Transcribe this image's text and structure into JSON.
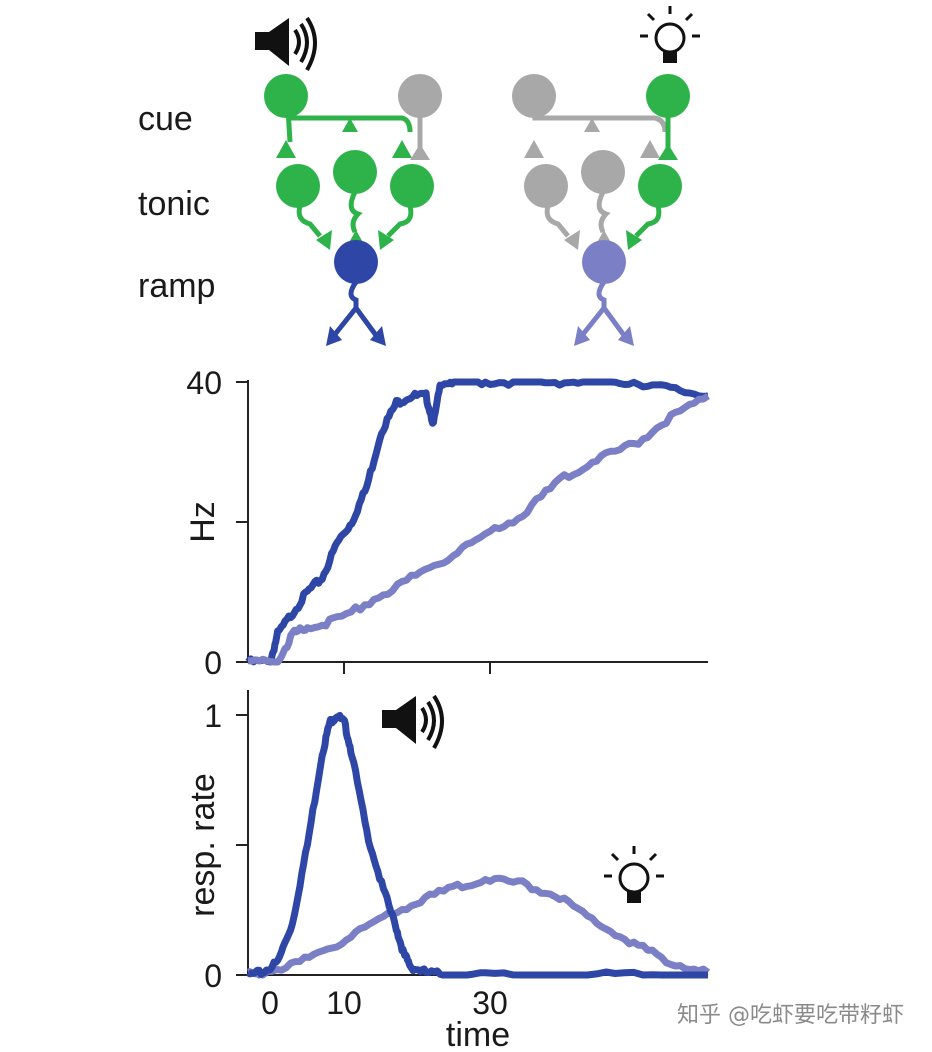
{
  "watermark": "知乎 @吃虾要吃带籽虾",
  "colors": {
    "cue_active": "#2db34a",
    "inactive": "#a8a8a8",
    "ramp_auditory": "#2e46a6",
    "ramp_visual": "#7b7fc6",
    "axis": "#222222"
  },
  "network": {
    "rows": [
      "cue",
      "tonic",
      "ramp"
    ],
    "left_stimulus_icon": "speaker-icon",
    "right_stimulus_icon": "lightbulb-icon"
  },
  "chart_data": [
    {
      "type": "line",
      "ylabel": "Hz",
      "xlim": [
        -2,
        60
      ],
      "ylim": [
        0,
        40
      ],
      "yticks": [
        0,
        40
      ],
      "xticks": [
        10,
        30
      ],
      "series": [
        {
          "color": "#2e46a6",
          "x": [
            -2,
            1,
            2,
            4,
            6,
            8,
            10,
            12,
            14,
            16,
            18,
            20,
            22,
            23,
            24,
            26,
            30,
            35,
            40,
            45,
            50,
            55,
            60
          ],
          "y": [
            0,
            0,
            4,
            7,
            10,
            12,
            17,
            20,
            25,
            33,
            37,
            38,
            38,
            34,
            40,
            40,
            40,
            40,
            40,
            40,
            40,
            39,
            38
          ]
        },
        {
          "color": "#7b7fc6",
          "x": [
            -2,
            2,
            4,
            6,
            10,
            15,
            20,
            25,
            30,
            35,
            40,
            45,
            50,
            55,
            60
          ],
          "y": [
            0,
            0,
            4,
            5,
            6,
            9,
            12,
            15,
            18,
            21,
            26,
            29,
            31,
            35,
            38
          ]
        }
      ]
    },
    {
      "type": "line",
      "ylabel": "resp. rate",
      "xlabel": "time",
      "xlim": [
        -2,
        60
      ],
      "ylim": [
        0,
        1
      ],
      "yticks": [
        0,
        1
      ],
      "xtick_labels": [
        "0",
        "10",
        "30"
      ],
      "xticks": [
        0,
        10,
        30
      ],
      "series": [
        {
          "color": "#2e46a6",
          "icon": "speaker-icon",
          "x": [
            -2,
            0,
            2,
            4,
            6,
            8,
            9,
            10,
            11,
            12,
            14,
            16,
            18,
            19,
            20,
            22,
            25,
            30,
            40,
            50,
            60
          ],
          "y": [
            0,
            0.01,
            0.05,
            0.2,
            0.5,
            0.85,
            0.97,
            1.0,
            0.97,
            0.85,
            0.55,
            0.35,
            0.18,
            0.08,
            0.03,
            0.01,
            0,
            0,
            0,
            0,
            0
          ]
        },
        {
          "color": "#7b7fc6",
          "icon": "lightbulb-icon",
          "x": [
            -2,
            0,
            5,
            10,
            15,
            20,
            25,
            30,
            35,
            40,
            45,
            50,
            55,
            60
          ],
          "y": [
            0,
            0.01,
            0.05,
            0.12,
            0.2,
            0.27,
            0.33,
            0.37,
            0.35,
            0.3,
            0.2,
            0.12,
            0.05,
            0.01
          ]
        }
      ]
    }
  ]
}
